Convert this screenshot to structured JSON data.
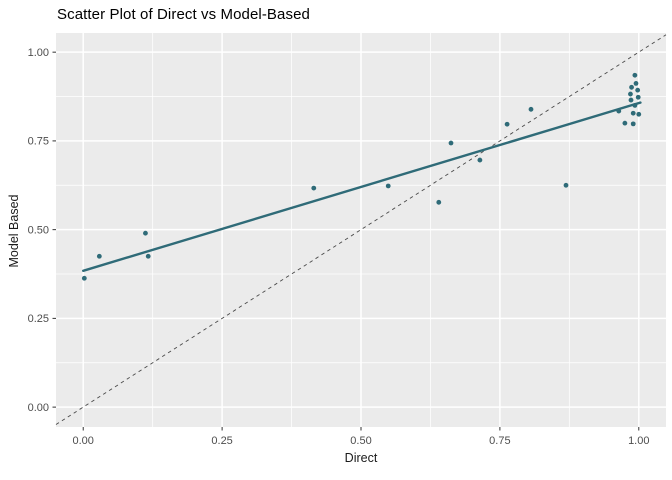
{
  "figure": {
    "title": "Scatter Plot of Direct vs Model-Based"
  },
  "chart_data": {
    "type": "scatter",
    "title": "Scatter Plot of Direct vs Model-Based",
    "xlabel": "Direct",
    "ylabel": "Model Based",
    "xlim": [
      -0.049,
      1.049
    ],
    "ylim": [
      -0.056,
      1.054
    ],
    "x_ticks": [
      0.0,
      0.25,
      0.5,
      0.75,
      1.0
    ],
    "y_ticks": [
      0.0,
      0.25,
      0.5,
      0.75,
      1.0
    ],
    "x_tick_labels": [
      "0.00",
      "0.25",
      "0.50",
      "0.75",
      "1.00"
    ],
    "y_tick_labels": [
      "0.00",
      "0.25",
      "0.50",
      "0.75",
      "1.00"
    ],
    "x_minor_ticks": [
      0.125,
      0.375,
      0.625,
      0.875
    ],
    "y_minor_ticks": [
      0.125,
      0.375,
      0.625,
      0.875
    ],
    "grid": "major+minor",
    "legend_position": "none",
    "colors": {
      "panel_background": "#ebebeb",
      "gridline": "#ffffff",
      "point": "#2f6b78",
      "smooth_line": "#2f6b78",
      "identity_line": "#4a4a4a",
      "tick_label": "#4d4d4d",
      "tick_mark": "#333333",
      "axis_title": "#1a1a1a",
      "title": "#000000"
    },
    "points": [
      [
        0.002,
        0.363
      ],
      [
        0.029,
        0.425
      ],
      [
        0.112,
        0.49
      ],
      [
        0.117,
        0.425
      ],
      [
        0.415,
        0.617
      ],
      [
        0.549,
        0.623
      ],
      [
        0.64,
        0.577
      ],
      [
        0.662,
        0.744
      ],
      [
        0.714,
        0.696
      ],
      [
        0.763,
        0.797
      ],
      [
        0.806,
        0.839
      ],
      [
        0.869,
        0.625
      ],
      [
        0.964,
        0.834
      ],
      [
        0.975,
        0.8
      ],
      [
        0.99,
        0.798
      ],
      [
        0.987,
        0.901
      ],
      [
        0.985,
        0.882
      ],
      [
        0.986,
        0.865
      ],
      [
        0.99,
        0.828
      ],
      [
        0.993,
        0.85
      ],
      [
        0.993,
        0.935
      ],
      [
        0.995,
        0.912
      ],
      [
        0.998,
        0.893
      ],
      [
        0.999,
        0.873
      ],
      [
        1.0,
        0.825
      ]
    ],
    "smooth_line": {
      "x1": 0.0,
      "y1": 0.384,
      "x2": 1.003,
      "y2": 0.858
    },
    "identity_line": {
      "x1": -0.049,
      "y1": -0.049,
      "x2": 1.049,
      "y2": 1.049,
      "style": "dashed"
    }
  }
}
